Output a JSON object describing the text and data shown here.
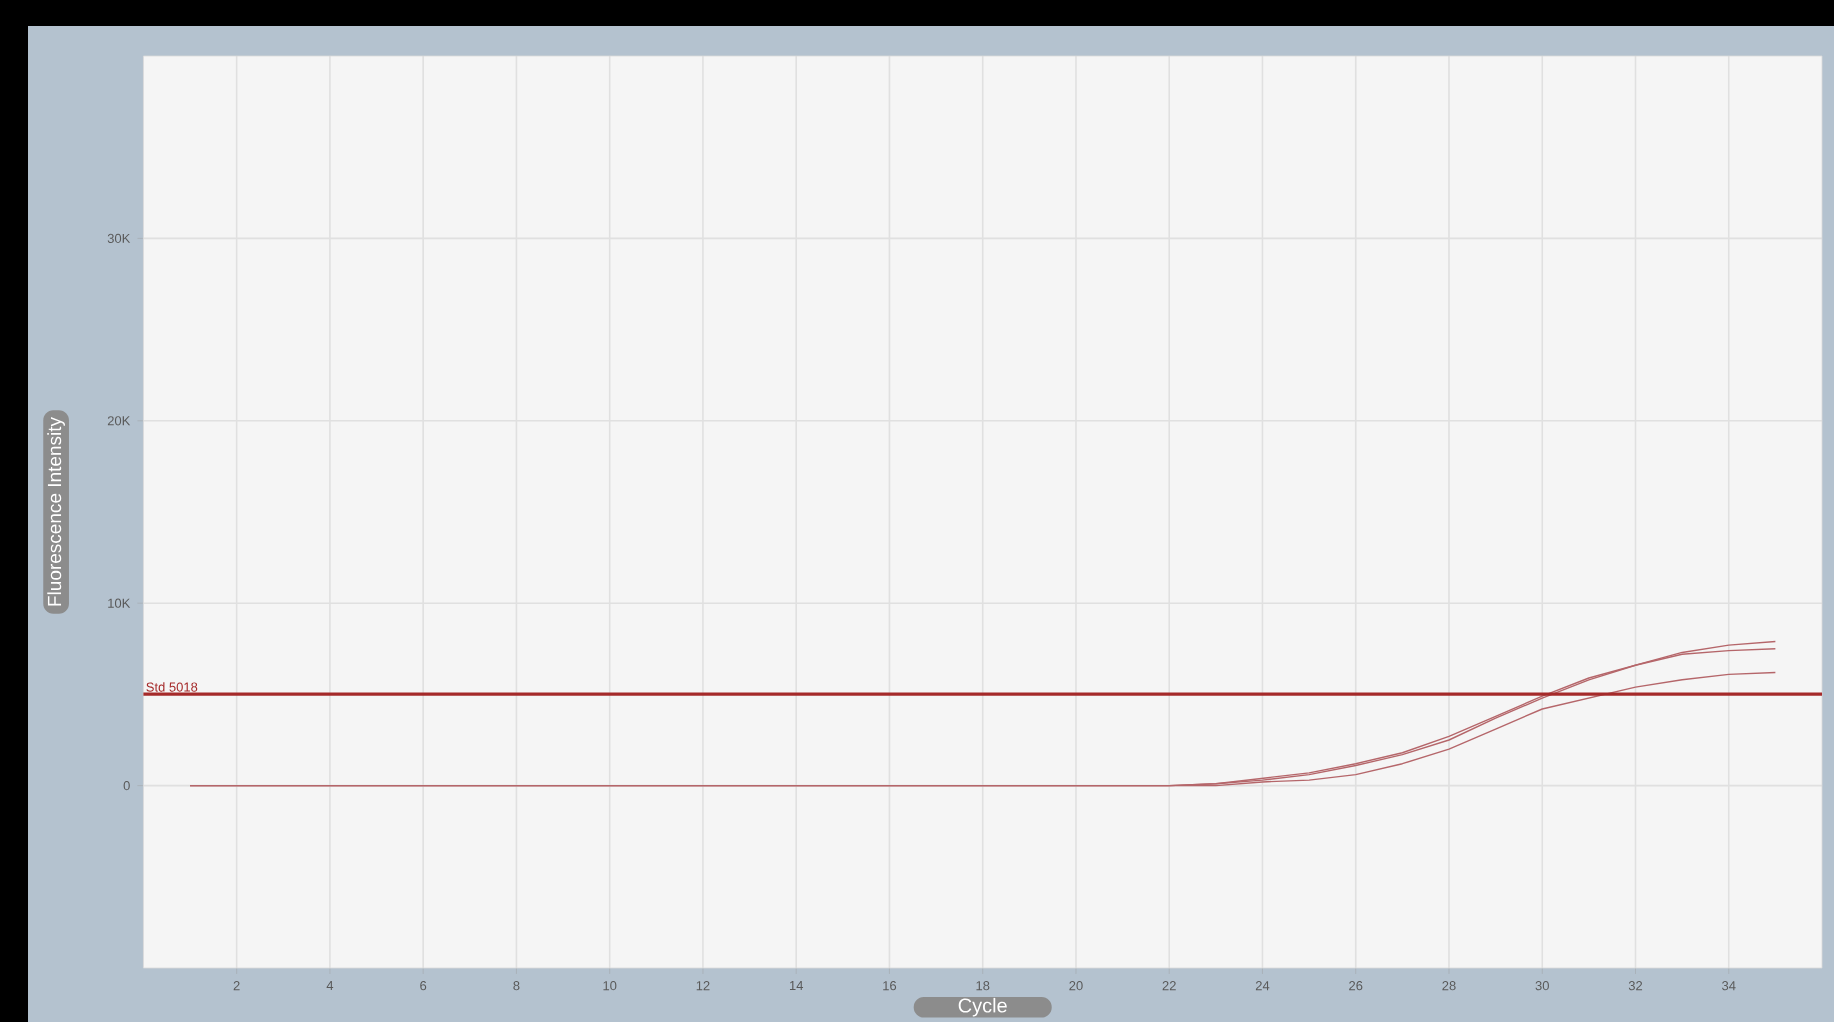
{
  "chart_data": {
    "type": "line",
    "xlabel": "Cycle",
    "ylabel": "Fluorescence Intensity",
    "x": [
      1,
      21.5,
      22,
      23,
      24,
      25,
      26,
      27,
      28,
      29,
      30,
      31,
      32,
      33,
      34,
      35
    ],
    "series": [
      {
        "color": "#b5666a",
        "values": [
          0,
          0,
          0,
          100,
          400,
          700,
          1200,
          1800,
          2700,
          3800,
          4900,
          5900,
          6600,
          7300,
          7700,
          7900
        ]
      },
      {
        "color": "#b5666a",
        "values": [
          0,
          0,
          0,
          100,
          300,
          600,
          1100,
          1700,
          2500,
          3700,
          4800,
          5800,
          6600,
          7200,
          7400,
          7500
        ]
      },
      {
        "color": "#b5666a",
        "values": [
          0,
          0,
          0,
          0,
          200,
          300,
          600,
          1200,
          2000,
          3100,
          4200,
          4800,
          5400,
          5800,
          6100,
          6200
        ]
      }
    ],
    "xlim": [
      0,
      36
    ],
    "ylim": [
      -10000,
      40000
    ],
    "xticks": [
      2,
      4,
      6,
      8,
      10,
      12,
      14,
      16,
      18,
      20,
      22,
      24,
      26,
      28,
      30,
      32,
      34
    ],
    "yticks": [
      {
        "value": 0,
        "label": "0"
      },
      {
        "value": 10000,
        "label": "10K"
      },
      {
        "value": 20000,
        "label": "20K"
      },
      {
        "value": 30000,
        "label": "30K"
      }
    ],
    "ref_lines": [
      {
        "axis": "y",
        "value": 5018,
        "label": "Std 5018",
        "color": "#a52a2a"
      }
    ],
    "grid": true,
    "line_style": "solid"
  }
}
